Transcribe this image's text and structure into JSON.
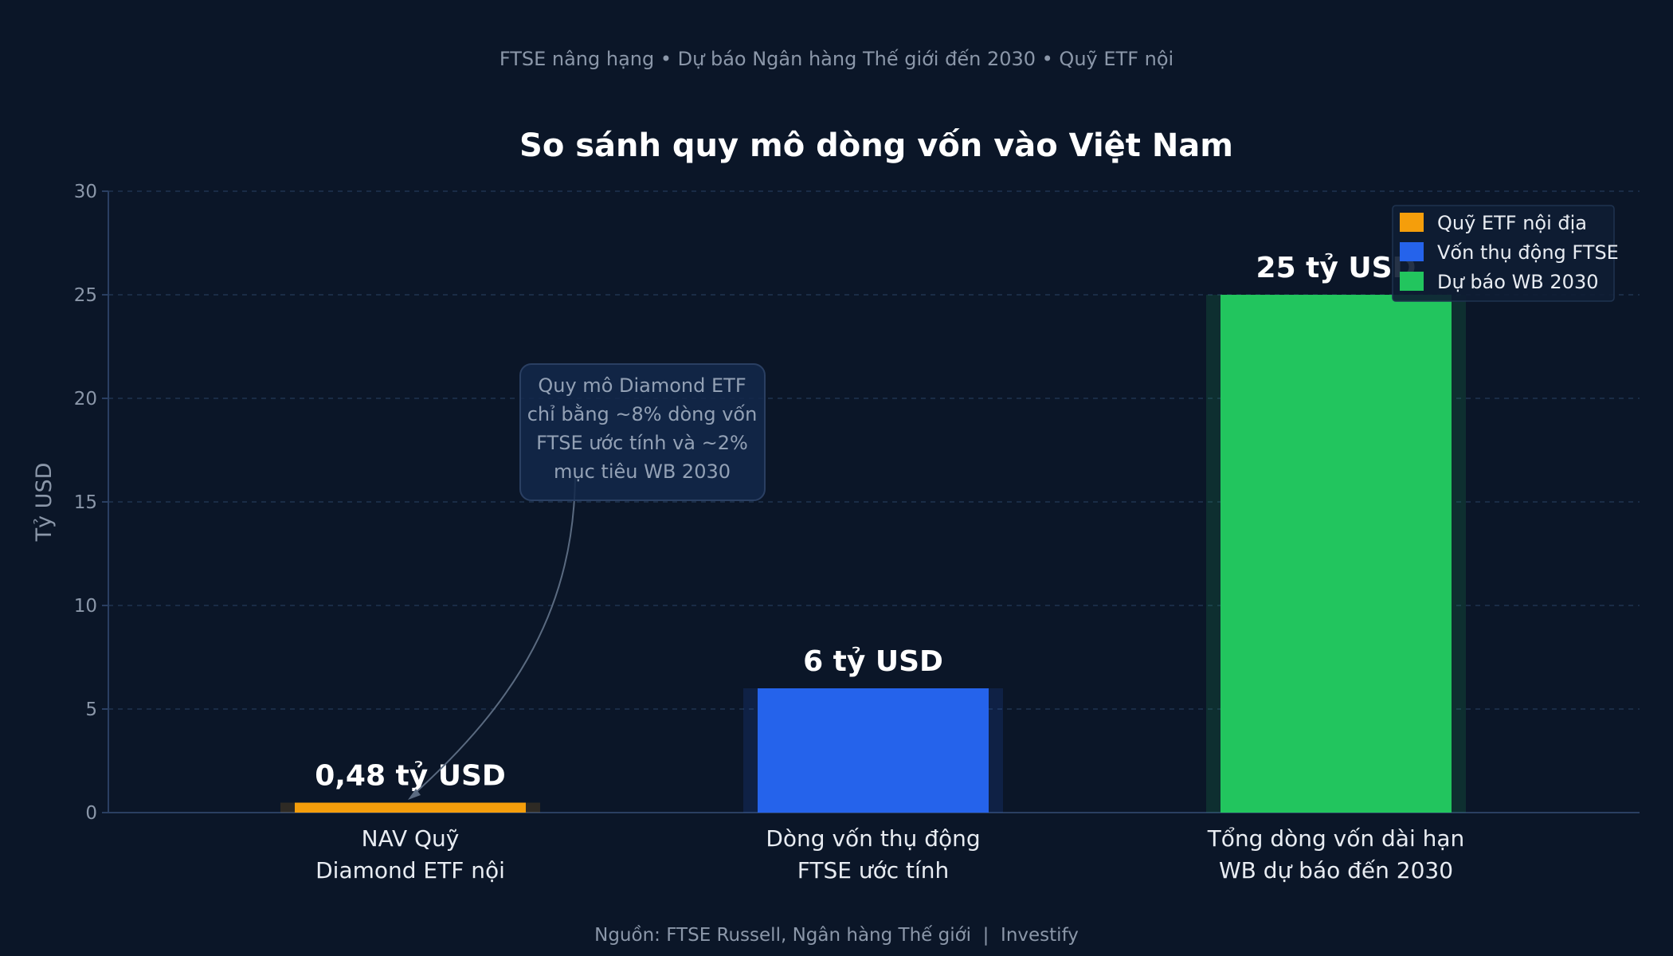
{
  "header": {
    "subtitle": "FTSE nâng hạng • Dự báo Ngân hàng Thế giới đến 2030 • Quỹ ETF nội",
    "title": "So sánh quy mô dòng vốn vào Việt Nam"
  },
  "footer": {
    "source": "Nguồn: FTSE Russell, Ngân hàng Thế giới  |  Investify"
  },
  "annotation": {
    "lines": [
      "Quy mô Diamond ETF",
      "chỉ bằng ~8% dòng vốn",
      "FTSE ước tính và ~2%",
      "mục tiêu WB 2030"
    ]
  },
  "chart_data": {
    "type": "bar",
    "title": "So sánh quy mô dòng vốn vào Việt Nam",
    "xlabel": "",
    "ylabel": "Tỷ USD",
    "ylim": [
      0,
      30
    ],
    "yticks": [
      0,
      5,
      10,
      15,
      20,
      25,
      30
    ],
    "grid": true,
    "legend_position": "top-right",
    "categories": [
      [
        "NAV Quỹ",
        "Diamond ETF nội"
      ],
      [
        "Dòng vốn thụ động",
        "FTSE ước tính"
      ],
      [
        "Tổng dòng vốn dài hạn",
        "WB dự báo đến 2030"
      ]
    ],
    "values": [
      0.48,
      6,
      25
    ],
    "value_labels": [
      "0,48 tỷ USD",
      "6 tỷ USD",
      "25 tỷ USD"
    ],
    "colors": [
      "#f59e0b",
      "#2563eb",
      "#22c55e"
    ],
    "legend": [
      "Quỹ ETF nội địa",
      "Vốn thụ động FTSE",
      "Dự báo WB 2030"
    ]
  }
}
